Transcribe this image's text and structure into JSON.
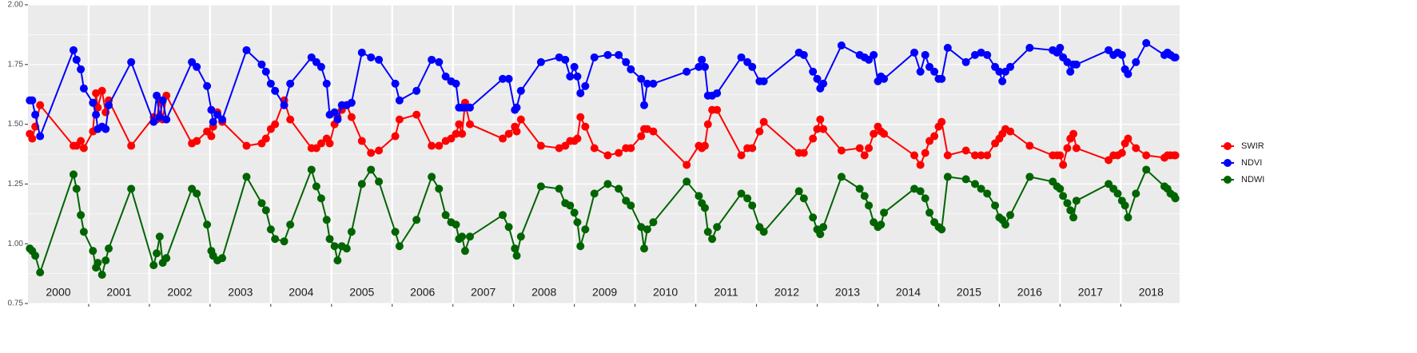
{
  "chart_data": {
    "type": "line",
    "x": [
      2000.03,
      2000.07,
      2000.12,
      2000.2,
      2000.75,
      2000.8,
      2000.87,
      2000.92,
      2001.07,
      2001.12,
      2001.15,
      2001.22,
      2001.28,
      2001.33,
      2001.7,
      2002.07,
      2002.12,
      2002.17,
      2002.22,
      2002.28,
      2002.7,
      2002.78,
      2002.95,
      2003.02,
      2003.05,
      2003.12,
      2003.2,
      2003.6,
      2003.85,
      2003.92,
      2004.0,
      2004.07,
      2004.22,
      2004.32,
      2004.67,
      2004.75,
      2004.83,
      2004.92,
      2004.97,
      2005.05,
      2005.1,
      2005.17,
      2005.25,
      2005.33,
      2005.5,
      2005.65,
      2005.78,
      2006.05,
      2006.12,
      2006.4,
      2006.65,
      2006.77,
      2006.88,
      2006.97,
      2007.05,
      2007.1,
      2007.15,
      2007.2,
      2007.28,
      2007.82,
      2007.92,
      2008.02,
      2008.05,
      2008.12,
      2008.45,
      2008.75,
      2008.85,
      2008.93,
      2009.0,
      2009.05,
      2009.1,
      2009.18,
      2009.33,
      2009.55,
      2009.73,
      2009.85,
      2009.93,
      2010.1,
      2010.15,
      2010.2,
      2010.3,
      2010.85,
      2011.05,
      2011.1,
      2011.15,
      2011.2,
      2011.27,
      2011.35,
      2011.75,
      2011.85,
      2011.93,
      2012.05,
      2012.12,
      2012.7,
      2012.78,
      2012.93,
      2013.0,
      2013.05,
      2013.1,
      2013.4,
      2013.7,
      2013.78,
      2013.85,
      2013.93,
      2014.0,
      2014.05,
      2014.1,
      2014.6,
      2014.7,
      2014.78,
      2014.85,
      2014.93,
      2015.0,
      2015.05,
      2015.15,
      2015.45,
      2015.6,
      2015.7,
      2015.8,
      2015.93,
      2016.0,
      2016.05,
      2016.1,
      2016.18,
      2016.5,
      2016.88,
      2016.95,
      2017.0,
      2017.05,
      2017.12,
      2017.17,
      2017.22,
      2017.27,
      2017.8,
      2017.88,
      2017.95,
      2018.02,
      2018.07,
      2018.12,
      2018.25,
      2018.42,
      2018.72,
      2018.77,
      2018.82,
      2018.88,
      2018.9
    ],
    "series": [
      {
        "name": "SWIR",
        "color": "#ff0000",
        "values": [
          1.46,
          1.44,
          1.49,
          1.58,
          1.41,
          1.41,
          1.43,
          1.4,
          1.47,
          1.63,
          1.57,
          1.64,
          1.55,
          1.6,
          1.41,
          1.53,
          1.52,
          1.6,
          1.52,
          1.62,
          1.42,
          1.43,
          1.47,
          1.45,
          1.49,
          1.55,
          1.51,
          1.41,
          1.42,
          1.44,
          1.48,
          1.5,
          1.6,
          1.52,
          1.4,
          1.4,
          1.42,
          1.44,
          1.42,
          1.5,
          1.53,
          1.56,
          1.58,
          1.53,
          1.43,
          1.38,
          1.39,
          1.45,
          1.52,
          1.54,
          1.41,
          1.41,
          1.43,
          1.44,
          1.46,
          1.5,
          1.46,
          1.59,
          1.5,
          1.44,
          1.46,
          1.49,
          1.47,
          1.52,
          1.41,
          1.4,
          1.41,
          1.43,
          1.43,
          1.44,
          1.53,
          1.49,
          1.4,
          1.37,
          1.38,
          1.4,
          1.4,
          1.45,
          1.48,
          1.48,
          1.47,
          1.33,
          1.41,
          1.4,
          1.41,
          1.5,
          1.56,
          1.56,
          1.37,
          1.4,
          1.4,
          1.47,
          1.51,
          1.38,
          1.38,
          1.44,
          1.48,
          1.52,
          1.48,
          1.39,
          1.4,
          1.37,
          1.4,
          1.46,
          1.49,
          1.47,
          1.46,
          1.37,
          1.33,
          1.38,
          1.43,
          1.45,
          1.49,
          1.51,
          1.37,
          1.39,
          1.37,
          1.37,
          1.37,
          1.42,
          1.44,
          1.46,
          1.48,
          1.47,
          1.41,
          1.37,
          1.37,
          1.37,
          1.33,
          1.4,
          1.44,
          1.46,
          1.4,
          1.35,
          1.37,
          1.37,
          1.38,
          1.42,
          1.44,
          1.4,
          1.37,
          1.36,
          1.37,
          1.37,
          1.37,
          1.37
        ]
      },
      {
        "name": "NDVI",
        "color": "#0000ff",
        "values": [
          1.6,
          1.6,
          1.54,
          1.45,
          1.81,
          1.77,
          1.73,
          1.65,
          1.59,
          1.54,
          1.48,
          1.49,
          1.48,
          1.58,
          1.76,
          1.51,
          1.62,
          1.53,
          1.6,
          1.52,
          1.76,
          1.74,
          1.66,
          1.56,
          1.51,
          1.54,
          1.52,
          1.81,
          1.75,
          1.72,
          1.67,
          1.64,
          1.58,
          1.67,
          1.78,
          1.76,
          1.74,
          1.67,
          1.54,
          1.55,
          1.52,
          1.58,
          1.58,
          1.59,
          1.8,
          1.78,
          1.77,
          1.67,
          1.6,
          1.64,
          1.77,
          1.76,
          1.7,
          1.68,
          1.67,
          1.57,
          1.57,
          1.57,
          1.57,
          1.69,
          1.69,
          1.56,
          1.57,
          1.64,
          1.76,
          1.78,
          1.77,
          1.7,
          1.74,
          1.7,
          1.63,
          1.66,
          1.78,
          1.79,
          1.79,
          1.76,
          1.73,
          1.69,
          1.58,
          1.67,
          1.67,
          1.72,
          1.74,
          1.77,
          1.74,
          1.62,
          1.62,
          1.63,
          1.78,
          1.76,
          1.74,
          1.68,
          1.68,
          1.8,
          1.79,
          1.72,
          1.69,
          1.65,
          1.67,
          1.83,
          1.79,
          1.78,
          1.77,
          1.79,
          1.68,
          1.7,
          1.69,
          1.8,
          1.72,
          1.79,
          1.74,
          1.72,
          1.69,
          1.69,
          1.82,
          1.76,
          1.79,
          1.8,
          1.79,
          1.74,
          1.72,
          1.68,
          1.72,
          1.74,
          1.82,
          1.81,
          1.8,
          1.82,
          1.78,
          1.76,
          1.72,
          1.75,
          1.75,
          1.81,
          1.79,
          1.8,
          1.79,
          1.73,
          1.71,
          1.76,
          1.84,
          1.79,
          1.8,
          1.79,
          1.78,
          1.78
        ]
      },
      {
        "name": "NDWI",
        "color": "#006400",
        "values": [
          0.98,
          0.97,
          0.95,
          0.88,
          1.29,
          1.23,
          1.12,
          1.05,
          0.97,
          0.9,
          0.92,
          0.87,
          0.93,
          0.98,
          1.23,
          0.91,
          0.96,
          1.03,
          0.92,
          0.94,
          1.23,
          1.21,
          1.08,
          0.97,
          0.95,
          0.93,
          0.94,
          1.28,
          1.17,
          1.14,
          1.06,
          1.02,
          1.01,
          1.08,
          1.31,
          1.24,
          1.19,
          1.1,
          1.02,
          0.99,
          0.93,
          0.99,
          0.98,
          1.05,
          1.25,
          1.31,
          1.26,
          1.05,
          0.99,
          1.1,
          1.28,
          1.23,
          1.12,
          1.09,
          1.08,
          1.02,
          1.03,
          0.97,
          1.03,
          1.12,
          1.07,
          0.98,
          0.95,
          1.03,
          1.24,
          1.23,
          1.17,
          1.16,
          1.13,
          1.09,
          0.99,
          1.06,
          1.21,
          1.25,
          1.23,
          1.18,
          1.16,
          1.07,
          0.98,
          1.06,
          1.09,
          1.26,
          1.2,
          1.17,
          1.15,
          1.05,
          1.02,
          1.07,
          1.21,
          1.19,
          1.16,
          1.07,
          1.05,
          1.22,
          1.19,
          1.11,
          1.06,
          1.04,
          1.07,
          1.28,
          1.23,
          1.2,
          1.16,
          1.09,
          1.07,
          1.08,
          1.13,
          1.23,
          1.22,
          1.19,
          1.13,
          1.09,
          1.07,
          1.06,
          1.28,
          1.27,
          1.25,
          1.23,
          1.21,
          1.16,
          1.11,
          1.1,
          1.08,
          1.12,
          1.28,
          1.26,
          1.24,
          1.23,
          1.2,
          1.17,
          1.14,
          1.11,
          1.18,
          1.25,
          1.23,
          1.21,
          1.18,
          1.16,
          1.11,
          1.21,
          1.31,
          1.24,
          1.23,
          1.21,
          1.2,
          1.19
        ]
      }
    ],
    "xlim": [
      2000,
      2018.97
    ],
    "xticks": [
      {
        "value": 2000.5,
        "label": "2000"
      },
      {
        "value": 2001.5,
        "label": "2001"
      },
      {
        "value": 2002.5,
        "label": "2002"
      },
      {
        "value": 2003.5,
        "label": "2003"
      },
      {
        "value": 2004.5,
        "label": "2004"
      },
      {
        "value": 2005.5,
        "label": "2005"
      },
      {
        "value": 2006.5,
        "label": "2006"
      },
      {
        "value": 2007.5,
        "label": "2007"
      },
      {
        "value": 2008.5,
        "label": "2008"
      },
      {
        "value": 2009.5,
        "label": "2009"
      },
      {
        "value": 2010.5,
        "label": "2010"
      },
      {
        "value": 2011.5,
        "label": "2011"
      },
      {
        "value": 2012.5,
        "label": "2012"
      },
      {
        "value": 2013.5,
        "label": "2013"
      },
      {
        "value": 2014.5,
        "label": "2014"
      },
      {
        "value": 2015.5,
        "label": "2015"
      },
      {
        "value": 2016.5,
        "label": "2016"
      },
      {
        "value": 2017.5,
        "label": "2017"
      },
      {
        "value": 2018.5,
        "label": "2018"
      }
    ],
    "xgrid": [
      2001,
      2002,
      2003,
      2004,
      2005,
      2006,
      2007,
      2008,
      2009,
      2010,
      2011,
      2012,
      2013,
      2014,
      2015,
      2016,
      2017,
      2018
    ],
    "ylim": [
      0.75,
      2.0
    ],
    "yticks": [
      0.75,
      {
        "value": 1.0,
        "label": "1.00"
      },
      1.25,
      {
        "value": 1.5,
        "label": "1.50"
      },
      1.75,
      {
        "value": 2.0,
        "label": "2.00"
      }
    ],
    "yminor": [
      0.875,
      1.125,
      1.375,
      1.625,
      1.875
    ],
    "grid": true,
    "legend": "right"
  }
}
